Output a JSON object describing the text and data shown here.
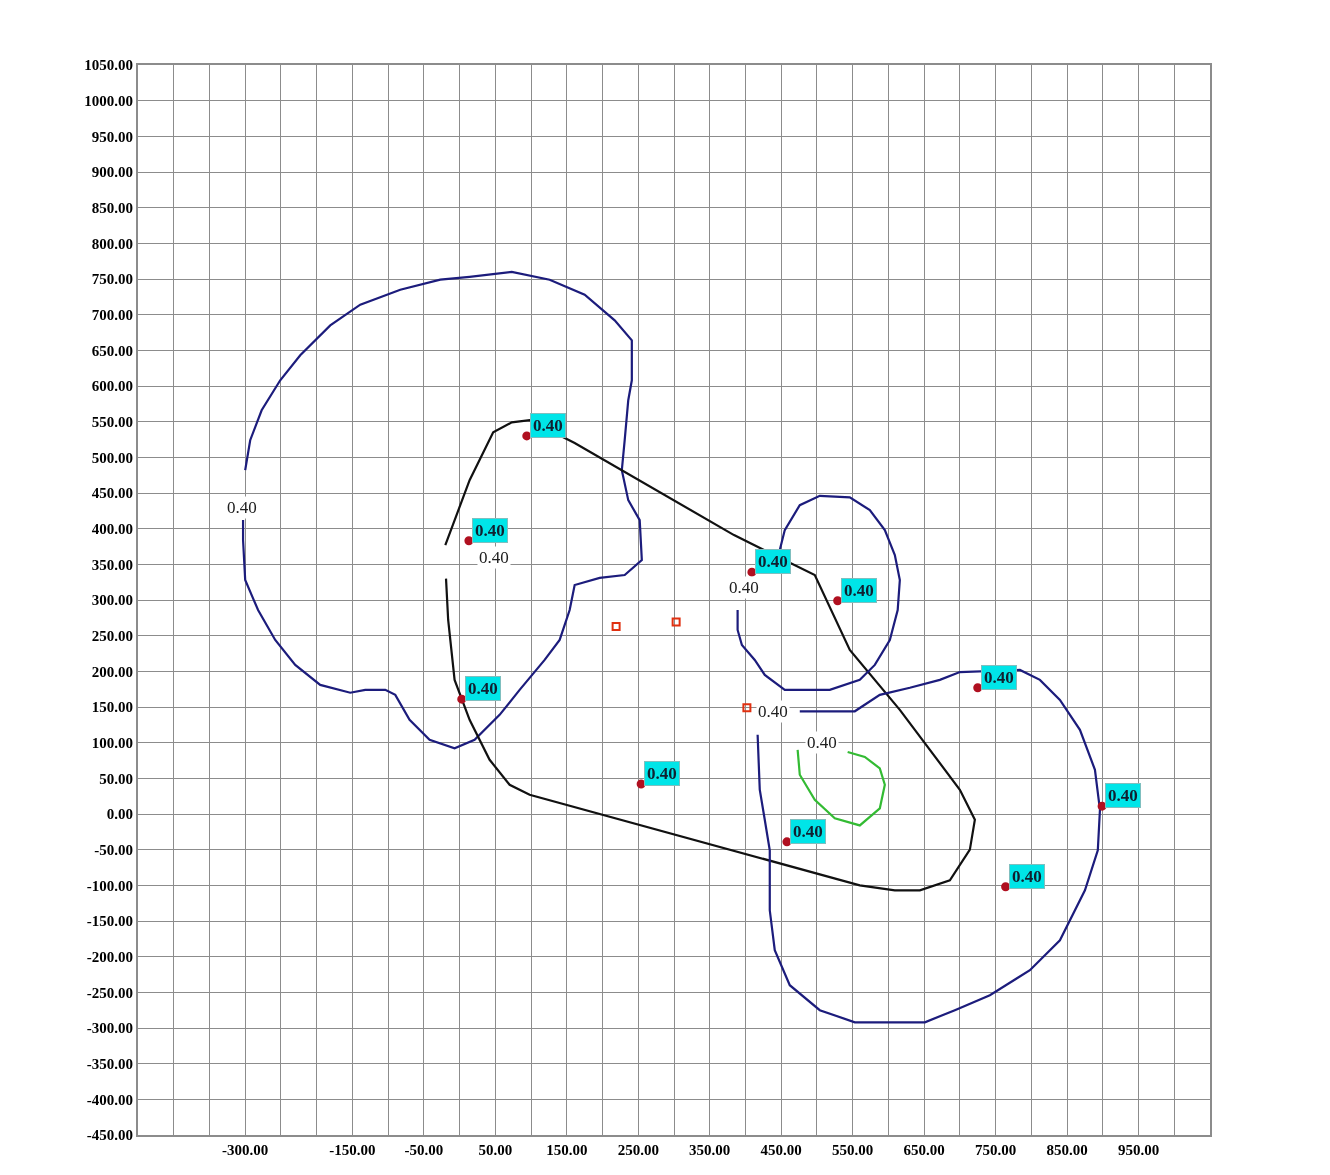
{
  "chart_data": {
    "type": "line",
    "xlim": [
      -450,
      1050
    ],
    "ylim": [
      -450,
      1050
    ],
    "grid": true,
    "legend": false,
    "line_style": "solid",
    "xticks": [
      {
        "value": -450,
        "label": null
      },
      {
        "value": -400,
        "label": null
      },
      {
        "value": -350,
        "label": null
      },
      {
        "value": -300,
        "label": "-300.00"
      },
      {
        "value": -250,
        "label": null
      },
      {
        "value": -200,
        "label": null
      },
      {
        "value": -150,
        "label": "-150.00"
      },
      {
        "value": -100,
        "label": null
      },
      {
        "value": -50,
        "label": "-50.00"
      },
      {
        "value": 0,
        "label": null
      },
      {
        "value": 50,
        "label": "50.00"
      },
      {
        "value": 100,
        "label": null
      },
      {
        "value": 150,
        "label": "150.00"
      },
      {
        "value": 200,
        "label": null
      },
      {
        "value": 250,
        "label": "250.00"
      },
      {
        "value": 300,
        "label": null
      },
      {
        "value": 350,
        "label": "350.00"
      },
      {
        "value": 400,
        "label": null
      },
      {
        "value": 450,
        "label": "450.00"
      },
      {
        "value": 500,
        "label": null
      },
      {
        "value": 550,
        "label": "550.00"
      },
      {
        "value": 600,
        "label": null
      },
      {
        "value": 650,
        "label": "650.00"
      },
      {
        "value": 700,
        "label": null
      },
      {
        "value": 750,
        "label": "750.00"
      },
      {
        "value": 800,
        "label": null
      },
      {
        "value": 850,
        "label": "850.00"
      },
      {
        "value": 900,
        "label": null
      },
      {
        "value": 950,
        "label": "950.00"
      },
      {
        "value": 1000,
        "label": null
      },
      {
        "value": 1050,
        "label": null
      }
    ],
    "yticks": [
      {
        "value": -450,
        "label": "-450.00"
      },
      {
        "value": -400,
        "label": "-400.00"
      },
      {
        "value": -350,
        "label": "-350.00"
      },
      {
        "value": -300,
        "label": "-300.00"
      },
      {
        "value": -250,
        "label": "-250.00"
      },
      {
        "value": -200,
        "label": "-200.00"
      },
      {
        "value": -150,
        "label": "-150.00"
      },
      {
        "value": -100,
        "label": "-100.00"
      },
      {
        "value": -50,
        "label": "-50.00"
      },
      {
        "value": 0,
        "label": "0.00"
      },
      {
        "value": 50,
        "label": "50.00"
      },
      {
        "value": 100,
        "label": "100.00"
      },
      {
        "value": 150,
        "label": "150.00"
      },
      {
        "value": 200,
        "label": "200.00"
      },
      {
        "value": 250,
        "label": "250.00"
      },
      {
        "value": 300,
        "label": "300.00"
      },
      {
        "value": 350,
        "label": "350.00"
      },
      {
        "value": 400,
        "label": "400.00"
      },
      {
        "value": 450,
        "label": "450.00"
      },
      {
        "value": 500,
        "label": "500.00"
      },
      {
        "value": 550,
        "label": "550.00"
      },
      {
        "value": 600,
        "label": "600.00"
      },
      {
        "value": 650,
        "label": "650.00"
      },
      {
        "value": 700,
        "label": "700.00"
      },
      {
        "value": 750,
        "label": "750.00"
      },
      {
        "value": 800,
        "label": "800.00"
      },
      {
        "value": 850,
        "label": "850.00"
      },
      {
        "value": 900,
        "label": "900.00"
      },
      {
        "value": 950,
        "label": "950.00"
      },
      {
        "value": 1000,
        "label": "1000.00"
      },
      {
        "value": 1050,
        "label": "1050.00"
      }
    ],
    "series": [
      {
        "marker": "none",
        "color": "#1c1c7c",
        "x": [
          -300,
          -293,
          -277,
          -251,
          -223,
          -181,
          -139,
          -83,
          -27,
          14,
          73,
          126,
          175,
          217,
          241,
          241,
          236,
          231,
          227,
          236,
          252,
          255,
          231,
          196,
          161,
          154,
          140,
          119,
          84,
          56,
          21,
          -7,
          -42,
          -70,
          -90,
          -104,
          -132,
          -153,
          -195,
          -230,
          -258,
          -282,
          -300,
          -303,
          -303
        ],
        "values": [
          482,
          524,
          566,
          608,
          643,
          685,
          714,
          735,
          749,
          753,
          760,
          749,
          728,
          692,
          664,
          608,
          580,
          524,
          482,
          440,
          412,
          356,
          335,
          331,
          321,
          286,
          244,
          216,
          174,
          139,
          104,
          92,
          104,
          132,
          167,
          174,
          174,
          170,
          181,
          209,
          244,
          286,
          328,
          384,
          412
        ]
      },
      {
        "marker": "none",
        "color": "#111111",
        "x": [
          -20,
          14,
          47,
          73,
          98,
          161,
          384,
          497,
          546,
          616,
          700,
          721,
          714,
          686,
          644,
          609,
          560,
          98,
          70,
          42,
          14,
          -7,
          -16,
          -19
        ],
        "values": [
          377,
          468,
          535,
          549,
          552,
          520,
          391,
          335,
          230,
          146,
          34,
          -8,
          -50,
          -93,
          -107,
          -107,
          -100,
          27,
          41,
          76,
          132,
          188,
          272,
          330
        ]
      },
      {
        "marker": "none",
        "color": "#1c1c7c",
        "x": [
          389,
          389,
          395,
          413,
          427,
          455,
          518,
          560,
          581,
          602,
          613,
          616,
          609,
          595,
          574,
          546,
          504,
          476,
          455,
          448
        ],
        "values": [
          286,
          258,
          237,
          216,
          195,
          174,
          174,
          188,
          209,
          244,
          286,
          328,
          363,
          398,
          426,
          444,
          446,
          433,
          398,
          370
        ]
      },
      {
        "marker": "none",
        "color": "#1c1c7c",
        "x": [
          476,
          553,
          588,
          630,
          672,
          700,
          784,
          812,
          840,
          868,
          889,
          896,
          893,
          875,
          840,
          798,
          742,
          693,
          651,
          553,
          504,
          462,
          441,
          434,
          434,
          427,
          420,
          417
        ],
        "values": [
          144,
          144,
          167,
          177,
          188,
          199,
          202,
          188,
          160,
          118,
          62,
          6,
          -51,
          -107,
          -177,
          -219,
          -254,
          -275,
          -292,
          -292,
          -275,
          -240,
          -191,
          -135,
          -51,
          -8,
          34,
          111
        ]
      },
      {
        "marker": "none",
        "color": "#33bb33",
        "x": [
          473,
          476,
          497,
          525,
          560,
          588,
          595,
          588,
          567,
          543
        ],
        "values": [
          90,
          55,
          20,
          -6,
          -16,
          8,
          41,
          64,
          80,
          87
        ]
      },
      {
        "type": "scatter",
        "marker": "circle",
        "color": "#b01020",
        "x": [
          94,
          13,
          3,
          254,
          458,
          529,
          725,
          899,
          764,
          409
        ],
        "values": [
          530,
          383,
          161,
          42,
          -39,
          299,
          177,
          11,
          -102,
          339
        ]
      },
      {
        "type": "scatter",
        "marker": "square",
        "color": "#e03010",
        "x": [
          219,
          303,
          402
        ],
        "values": [
          263,
          269,
          149
        ]
      }
    ],
    "annotations": [
      {
        "text": "0.40",
        "x": 94,
        "y": 530
      },
      {
        "text": "0.40",
        "x": 13,
        "y": 383
      },
      {
        "text": "0.40",
        "x": 3,
        "y": 161
      },
      {
        "text": "0.40",
        "x": 254,
        "y": 42
      },
      {
        "text": "0.40",
        "x": 458,
        "y": -39
      },
      {
        "text": "0.40",
        "x": 529,
        "y": 299
      },
      {
        "text": "0.40",
        "x": 725,
        "y": 177
      },
      {
        "text": "0.40",
        "x": 899,
        "y": 11
      },
      {
        "text": "0.40",
        "x": 764,
        "y": -102
      },
      {
        "text": "0.40",
        "x": 409,
        "y": 339
      },
      {
        "text": "0.40",
        "x": -304,
        "y": 429
      },
      {
        "text": "0.40",
        "x": 48,
        "y": 359
      },
      {
        "text": "0.40",
        "x": 398,
        "y": 317
      },
      {
        "text": "0.40",
        "x": 438,
        "y": 144
      },
      {
        "text": "0.40",
        "x": 507,
        "y": 100
      }
    ]
  }
}
